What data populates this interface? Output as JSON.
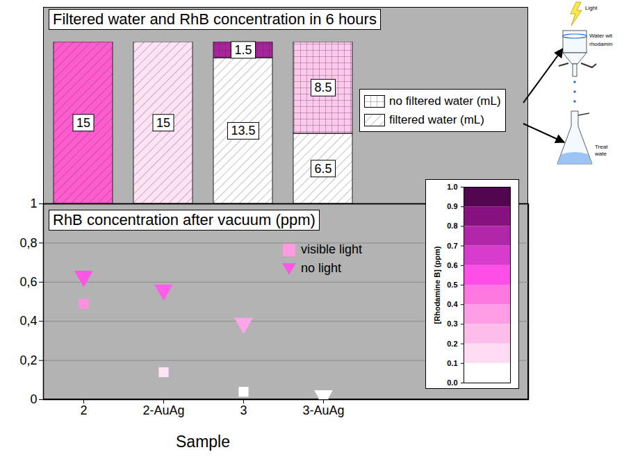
{
  "chart_data": [
    {
      "type": "bar",
      "title": "Filtered water and RhB concentration in 6 hours",
      "stacked": true,
      "data_labels": true,
      "tick_labels": false,
      "legend": "right",
      "categories": [
        "2",
        "2-AuAg",
        "3",
        "3-AuAg"
      ],
      "ylim": [
        0,
        15
      ],
      "series": [
        {
          "name": "filtered water (mL)",
          "values": [
            15,
            15,
            13.5,
            6.5
          ],
          "colors": [
            "#ff5ccf",
            "#ffe2f4",
            "#ffffff",
            "#ffffff"
          ]
        },
        {
          "name": "no filtered water (mL)",
          "values": [
            null,
            null,
            1.5,
            8.5
          ],
          "colors": [
            null,
            null,
            "#a8239c",
            "#ffc9ee"
          ]
        }
      ]
    },
    {
      "type": "scatter",
      "title": "RhB concentration after vacuum (ppm)",
      "x_label": "Sample",
      "categories": [
        "2",
        "2-AuAg",
        "3",
        "3-AuAg"
      ],
      "ylim": [
        0,
        1
      ],
      "yticks": [
        0,
        {
          "value": 0.2,
          "label": "0,2"
        },
        {
          "value": 0.4,
          "label": "0,4"
        },
        {
          "value": 0.6,
          "label": "0,6"
        },
        {
          "value": 0.8,
          "label": "0,8"
        },
        1
      ],
      "grid": true,
      "legend": "top",
      "series": [
        {
          "name": "visible light",
          "marker": "square",
          "color": "#ff99e0",
          "values": [
            0.49,
            0.14,
            0.04,
            0.02
          ],
          "colors": [
            "#ff8fe2",
            "#ffe3f6",
            "#ffffff",
            "#ffffff"
          ]
        },
        {
          "name": "no light",
          "marker": "triangle-down",
          "color": "#ff5ae6",
          "values": [
            0.63,
            0.56,
            0.39,
            0.02
          ],
          "colors": [
            "#ff55e6",
            "#ff5fe6",
            "#ffa6ea",
            "#ffffff"
          ]
        }
      ],
      "colorbar": {
        "label": "[Rhodamine B] (ppm)",
        "range": [
          0,
          1
        ],
        "ticks": [
          {
            "value": 0,
            "label": "0.0"
          },
          {
            "value": 0.1,
            "label": "0.1"
          },
          {
            "value": 0.2,
            "label": "0.2"
          },
          {
            "value": 0.3,
            "label": "0.3"
          },
          {
            "value": 0.4,
            "label": "0.4"
          },
          {
            "value": 0.5,
            "label": "0.5"
          },
          {
            "value": 0.6,
            "label": "0.6"
          },
          {
            "value": 0.7,
            "label": "0.7"
          },
          {
            "value": 0.8,
            "label": "0.8"
          },
          {
            "value": 0.9,
            "label": "0.9"
          },
          {
            "value": 1,
            "label": "1.0"
          }
        ],
        "colors": [
          "#ffffff",
          "#ffdcf4",
          "#ffbdec",
          "#ff9de6",
          "#ff78e2",
          "#ff4fe6",
          "#d83ccc",
          "#b226aa",
          "#87127f",
          "#52064f"
        ]
      }
    }
  ],
  "inset": {
    "labels": [
      "Light",
      "Water wit",
      "rhodamin",
      "Treat",
      "wate"
    ]
  }
}
